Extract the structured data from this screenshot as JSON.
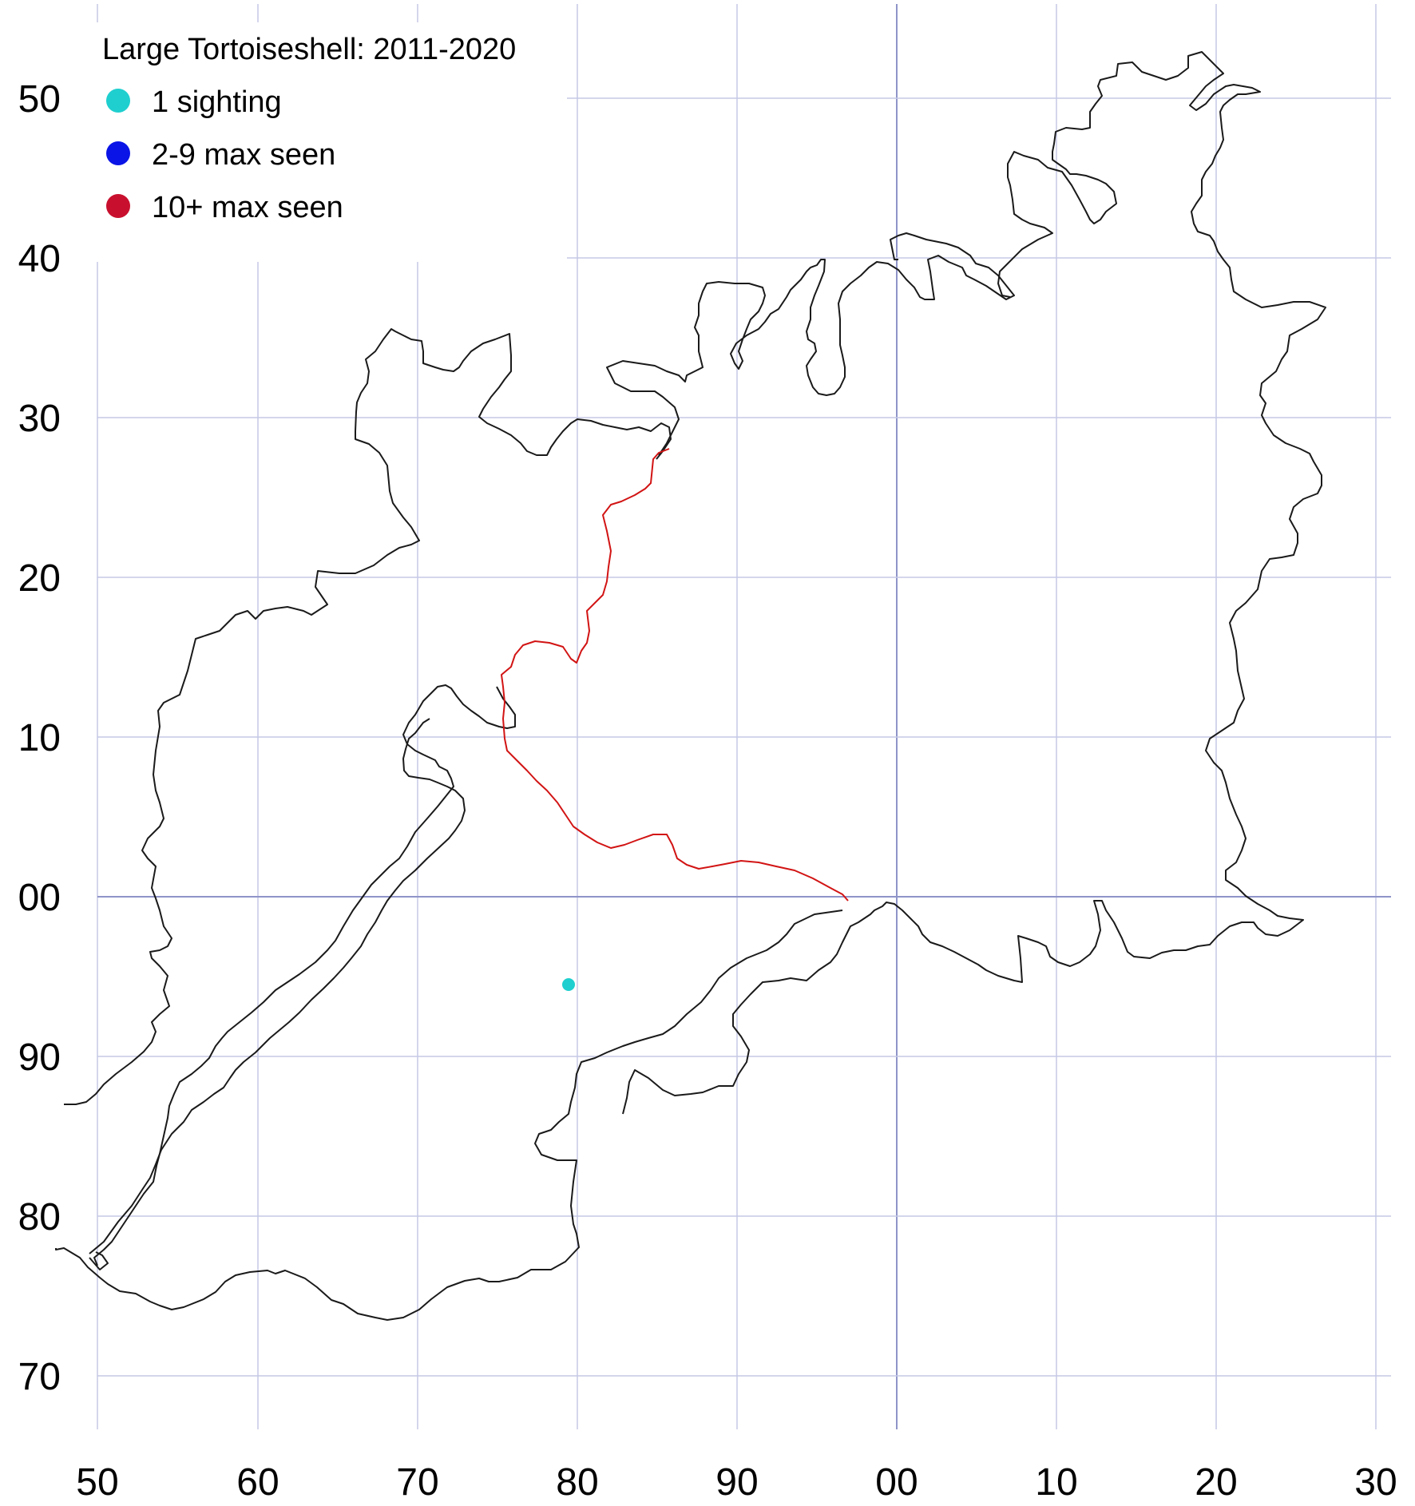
{
  "legend": {
    "title": "Large Tortoiseshell:  2011-2020",
    "items": [
      {
        "label": "1 sighting",
        "color": "#1fcfcf"
      },
      {
        "label": "2-9 max seen",
        "color": "#0a14e6"
      },
      {
        "label": "10+ max seen",
        "color": "#c8102e"
      }
    ]
  },
  "axes": {
    "x_ticks": [
      "50",
      "60",
      "70",
      "80",
      "90",
      "00",
      "10",
      "20",
      "30"
    ],
    "y_ticks": [
      "50",
      "40",
      "30",
      "20",
      "10",
      "00",
      "90",
      "80",
      "70"
    ]
  },
  "colors": {
    "grid": "#c5c9e6",
    "axis_zero": "#8f95c8",
    "county_boundary": "#1a1a1a",
    "red_boundary": "#d21414"
  },
  "sightings": [
    {
      "easting": 79.5,
      "northing": 94.5,
      "category": "1 sighting"
    }
  ]
}
